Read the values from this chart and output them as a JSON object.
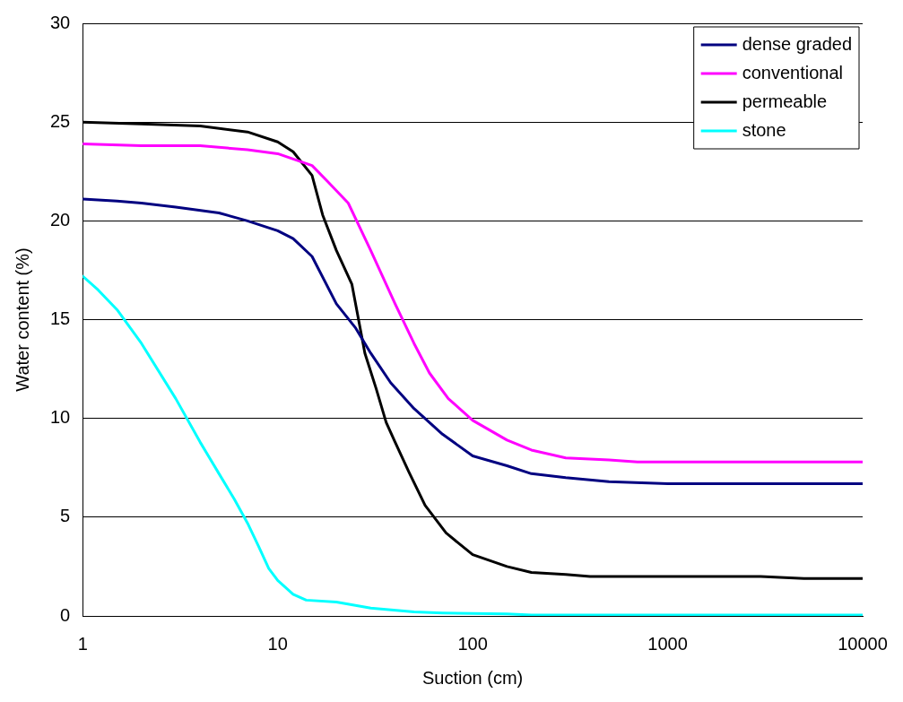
{
  "chart_data": {
    "type": "line",
    "xlabel": "Suction (cm)",
    "ylabel": "Water content (%)",
    "log": "x",
    "xlim": [
      1,
      10000
    ],
    "xticks": [
      1,
      10,
      100,
      1000,
      10000
    ],
    "ylim": [
      0,
      30
    ],
    "yticks": [
      0,
      5,
      10,
      15,
      20,
      25,
      30
    ],
    "grid": "y",
    "legend": "top right",
    "marker": "none",
    "line_style": "solid",
    "series": [
      {
        "name": "dense graded",
        "color": "#000080",
        "x": [
          1,
          1.5,
          2,
          3,
          5,
          7,
          10,
          12,
          15,
          20,
          25,
          30,
          38,
          50,
          70,
          100,
          150,
          200,
          300,
          500,
          1000,
          10000
        ],
        "values": [
          21.1,
          21.0,
          20.9,
          20.7,
          20.4,
          20.0,
          19.5,
          19.1,
          18.2,
          15.8,
          14.6,
          13.3,
          11.8,
          10.5,
          9.2,
          8.1,
          7.6,
          7.2,
          7.0,
          6.8,
          6.7,
          6.7
        ]
      },
      {
        "name": "conventional",
        "color": "#ff00ff",
        "x": [
          1,
          2,
          4,
          7,
          10,
          15,
          18,
          23,
          30,
          40,
          50,
          60,
          75,
          100,
          150,
          200,
          300,
          500,
          700,
          10000
        ],
        "values": [
          23.9,
          23.8,
          23.8,
          23.6,
          23.4,
          22.8,
          22.0,
          20.9,
          18.5,
          15.8,
          13.8,
          12.3,
          11.0,
          9.9,
          8.9,
          8.4,
          8.0,
          7.9,
          7.8,
          7.8
        ]
      },
      {
        "name": "permeable",
        "color": "#000000",
        "x": [
          1,
          2,
          4,
          7,
          10,
          12,
          15,
          17,
          20,
          24,
          28,
          32,
          36,
          40,
          47,
          57,
          73,
          100,
          150,
          200,
          300,
          400,
          1000,
          3000,
          5000,
          10000
        ],
        "values": [
          25.0,
          24.9,
          24.8,
          24.5,
          24.0,
          23.5,
          22.3,
          20.3,
          18.5,
          16.8,
          13.3,
          11.5,
          9.8,
          8.8,
          7.3,
          5.6,
          4.2,
          3.1,
          2.5,
          2.2,
          2.1,
          2.0,
          2.0,
          2.0,
          1.9,
          1.9
        ]
      },
      {
        "name": "stone",
        "color": "#00ffff",
        "x": [
          1,
          1.2,
          1.5,
          2,
          3,
          4,
          5,
          6,
          7,
          8,
          9,
          10,
          12,
          14,
          20,
          30,
          50,
          70,
          150,
          200,
          10000
        ],
        "values": [
          17.2,
          16.5,
          15.5,
          13.8,
          11.0,
          8.8,
          7.2,
          5.9,
          4.7,
          3.5,
          2.4,
          1.8,
          1.1,
          0.8,
          0.7,
          0.4,
          0.2,
          0.15,
          0.1,
          0.05,
          0.05
        ]
      }
    ]
  }
}
